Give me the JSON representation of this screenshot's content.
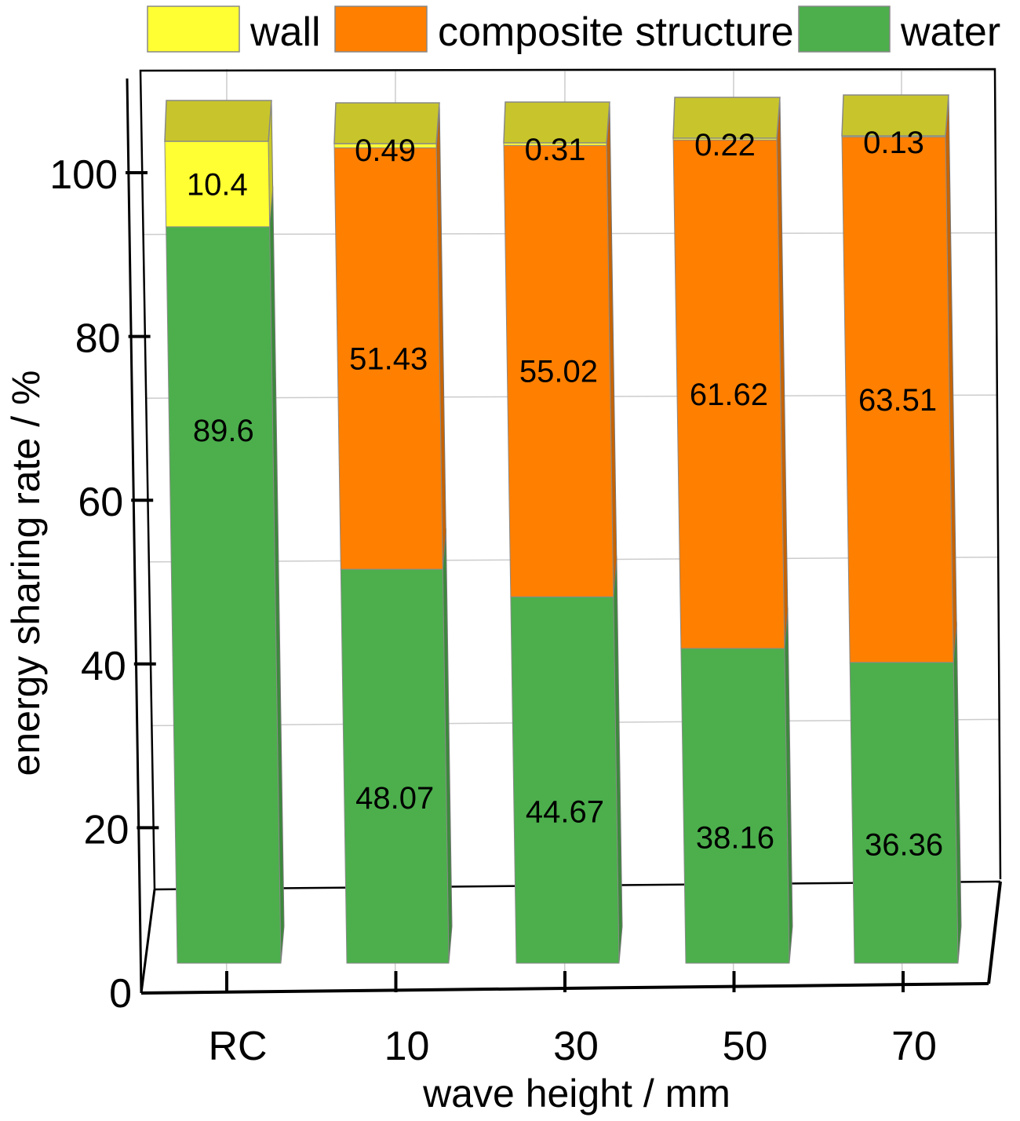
{
  "chart_data": {
    "type": "bar",
    "stacked": true,
    "style": "3d",
    "categories": [
      "RC",
      "10",
      "30",
      "50",
      "70"
    ],
    "series": [
      {
        "name": "water",
        "values": [
          89.6,
          48.07,
          44.67,
          38.16,
          36.36
        ],
        "color": "#4caf4c"
      },
      {
        "name": "composite structure",
        "values": [
          0,
          51.43,
          55.02,
          61.62,
          63.51
        ],
        "color": "#ff7f00"
      },
      {
        "name": "wall",
        "values": [
          10.4,
          0.49,
          0.31,
          0.22,
          0.13
        ],
        "color": "#ffff33"
      }
    ],
    "labels": [
      [
        "89.6",
        "",
        "10.4"
      ],
      [
        "48.07",
        "51.43",
        "0.49"
      ],
      [
        "44.67",
        "55.02",
        "0.31"
      ],
      [
        "38.16",
        "61.62",
        "0.22"
      ],
      [
        "36.36",
        "63.51",
        "0.13"
      ]
    ],
    "legend": [
      "wall",
      "composite structure",
      "water"
    ],
    "legend_position": "top",
    "xlabel": "wave height / mm",
    "ylabel": "energy sharing rate / %",
    "ylim": [
      0,
      100
    ],
    "yticks": [
      0,
      20,
      40,
      60,
      80,
      100
    ],
    "grid": true
  }
}
